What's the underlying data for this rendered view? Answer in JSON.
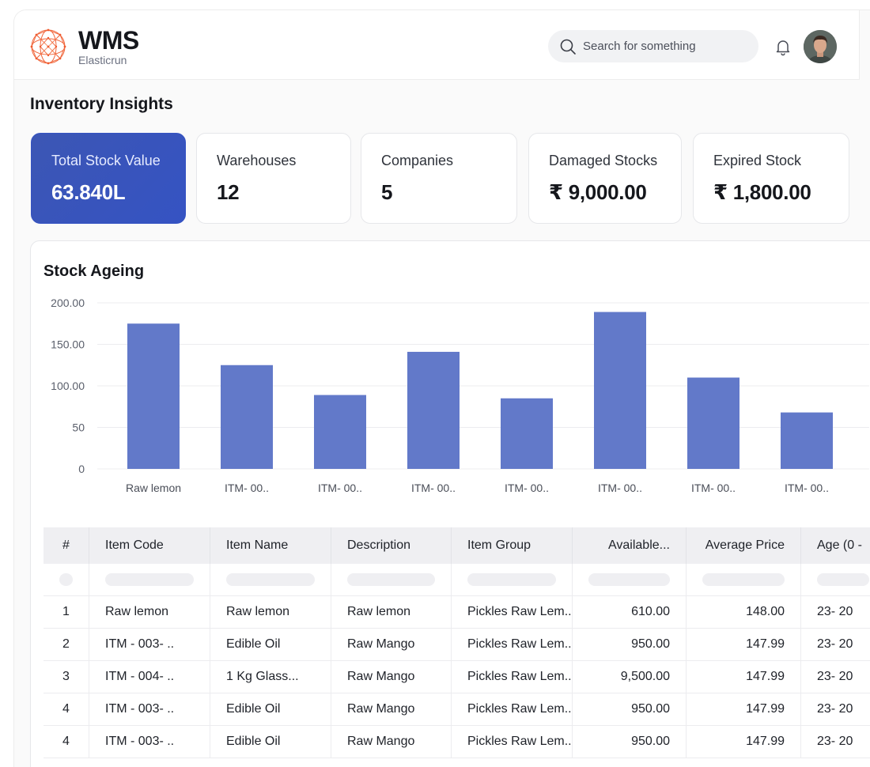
{
  "header": {
    "app_name": "WMS",
    "company": "Elasticrun",
    "search_placeholder": "Search for something"
  },
  "page": {
    "title": "Inventory Insights"
  },
  "stats": [
    {
      "label": "Total Stock Value",
      "value": "63.840L"
    },
    {
      "label": "Warehouses",
      "value": "12"
    },
    {
      "label": "Companies",
      "value": "5"
    },
    {
      "label": "Damaged Stocks",
      "value": "₹ 9,000.00"
    },
    {
      "label": "Expired Stock",
      "value": "₹ 1,800.00"
    }
  ],
  "colors": {
    "accent": "#3553c3",
    "bar": "#6279c9"
  },
  "stock_ageing": {
    "title": "Stock Ageing"
  },
  "chart_data": {
    "type": "bar",
    "title": "Stock Ageing",
    "categories": [
      "Raw lemon",
      "ITM- 00..",
      "ITM- 00..",
      "ITM- 00..",
      "ITM- 00..",
      "ITM- 00..",
      "ITM- 00..",
      "ITM- 00.."
    ],
    "values": [
      175,
      125,
      89,
      141,
      85,
      189,
      110,
      68
    ],
    "yticks": [
      "0",
      "50",
      "100.00",
      "150.00",
      "200.00"
    ],
    "ylim": [
      0,
      200
    ],
    "grid": true
  },
  "table": {
    "headers": [
      "#",
      "Item Code",
      "Item Name",
      "Description",
      "Item Group",
      "Available...",
      "Average Price",
      "Age (0 -"
    ],
    "rows": [
      [
        "1",
        "Raw lemon",
        "Raw lemon",
        "Raw lemon",
        "Pickles Raw Lem..",
        "610.00",
        "148.00",
        "23- 20"
      ],
      [
        "2",
        "ITM - 003- ..",
        "Edible Oil",
        "Raw Mango",
        "Pickles Raw Lem..",
        "950.00",
        "147.99",
        "23- 20"
      ],
      [
        "3",
        "ITM - 004- ..",
        "1 Kg Glass...",
        "Raw Mango",
        "Pickles Raw Lem..",
        "9,500.00",
        "147.99",
        "23- 20"
      ],
      [
        "4",
        "ITM - 003- ..",
        "Edible Oil",
        "Raw Mango",
        "Pickles Raw Lem..",
        "950.00",
        "147.99",
        "23- 20"
      ],
      [
        "4",
        "ITM - 003- ..",
        "Edible Oil",
        "Raw Mango",
        "Pickles Raw Lem..",
        "950.00",
        "147.99",
        "23- 20"
      ]
    ]
  }
}
